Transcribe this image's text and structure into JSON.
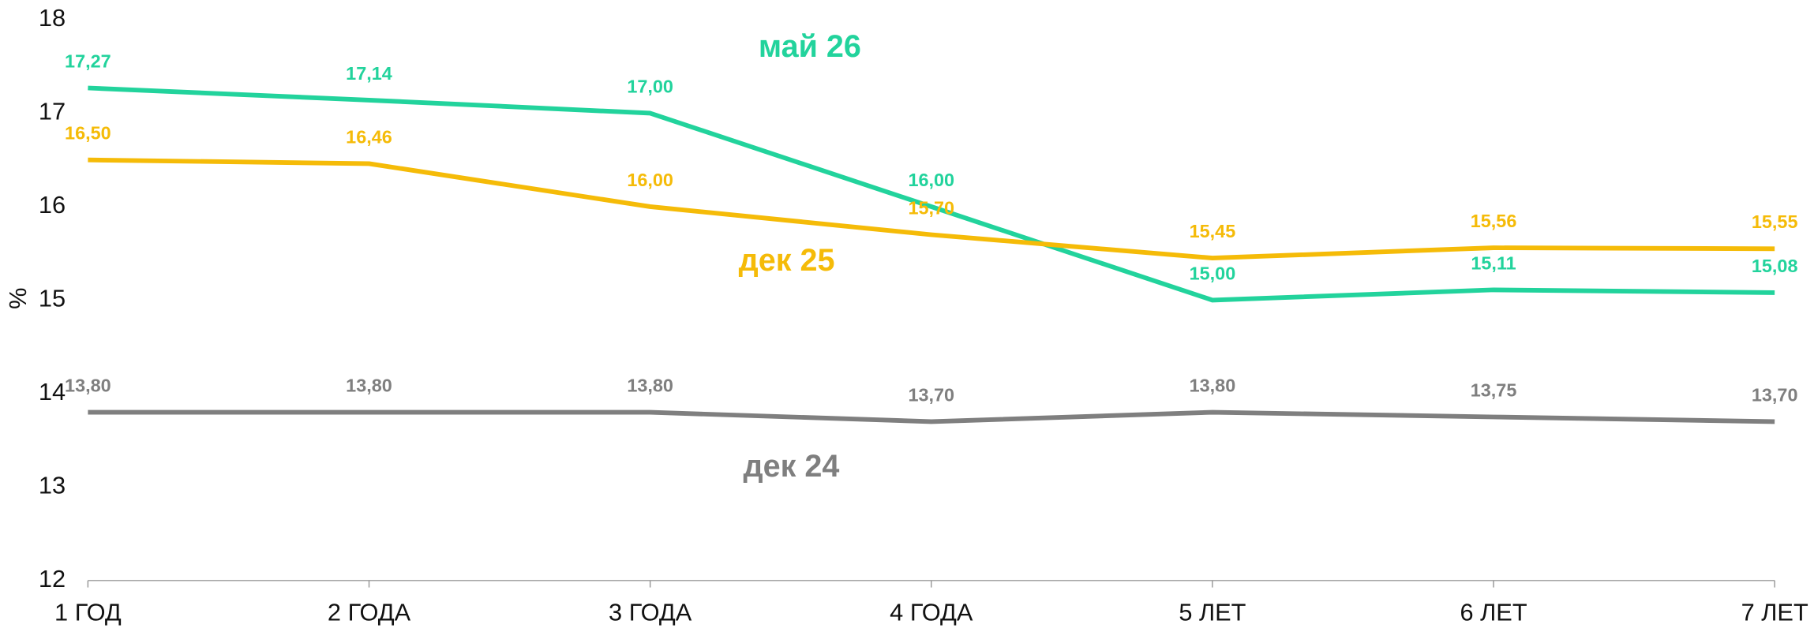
{
  "chart_data": {
    "type": "line",
    "y_label": "%",
    "categories": [
      "1 ГОД",
      "2 ГОДА",
      "3 ГОДА",
      "4 ГОДА",
      "5 ЛЕТ",
      "6 ЛЕТ",
      "7 ЛЕТ"
    ],
    "series": [
      {
        "name": "май 26",
        "color": "#22d39c",
        "values": [
          17.27,
          17.14,
          17.0,
          16.0,
          15.0,
          15.11,
          15.08
        ],
        "value_labels": [
          "17,27",
          "17,14",
          "17,00",
          "16,00",
          "15,00",
          "15,11",
          "15,08"
        ]
      },
      {
        "name": "дек 25",
        "color": "#f5bb08",
        "values": [
          16.5,
          16.46,
          16.0,
          15.7,
          15.45,
          15.56,
          15.55
        ],
        "value_labels": [
          "16,50",
          "16,46",
          "16,00",
          "15,70",
          "15,45",
          "15,56",
          "15,55"
        ]
      },
      {
        "name": "дек 24",
        "color": "#7f7f7f",
        "values": [
          13.8,
          13.8,
          13.8,
          13.7,
          13.8,
          13.75,
          13.7
        ],
        "value_labels": [
          "13,80",
          "13,80",
          "13,80",
          "13,70",
          "13,80",
          "13,75",
          "13,70"
        ]
      }
    ],
    "ylim": [
      12,
      18
    ],
    "yticks": [
      12,
      13,
      14,
      15,
      16,
      17,
      18
    ],
    "grid": false
  }
}
